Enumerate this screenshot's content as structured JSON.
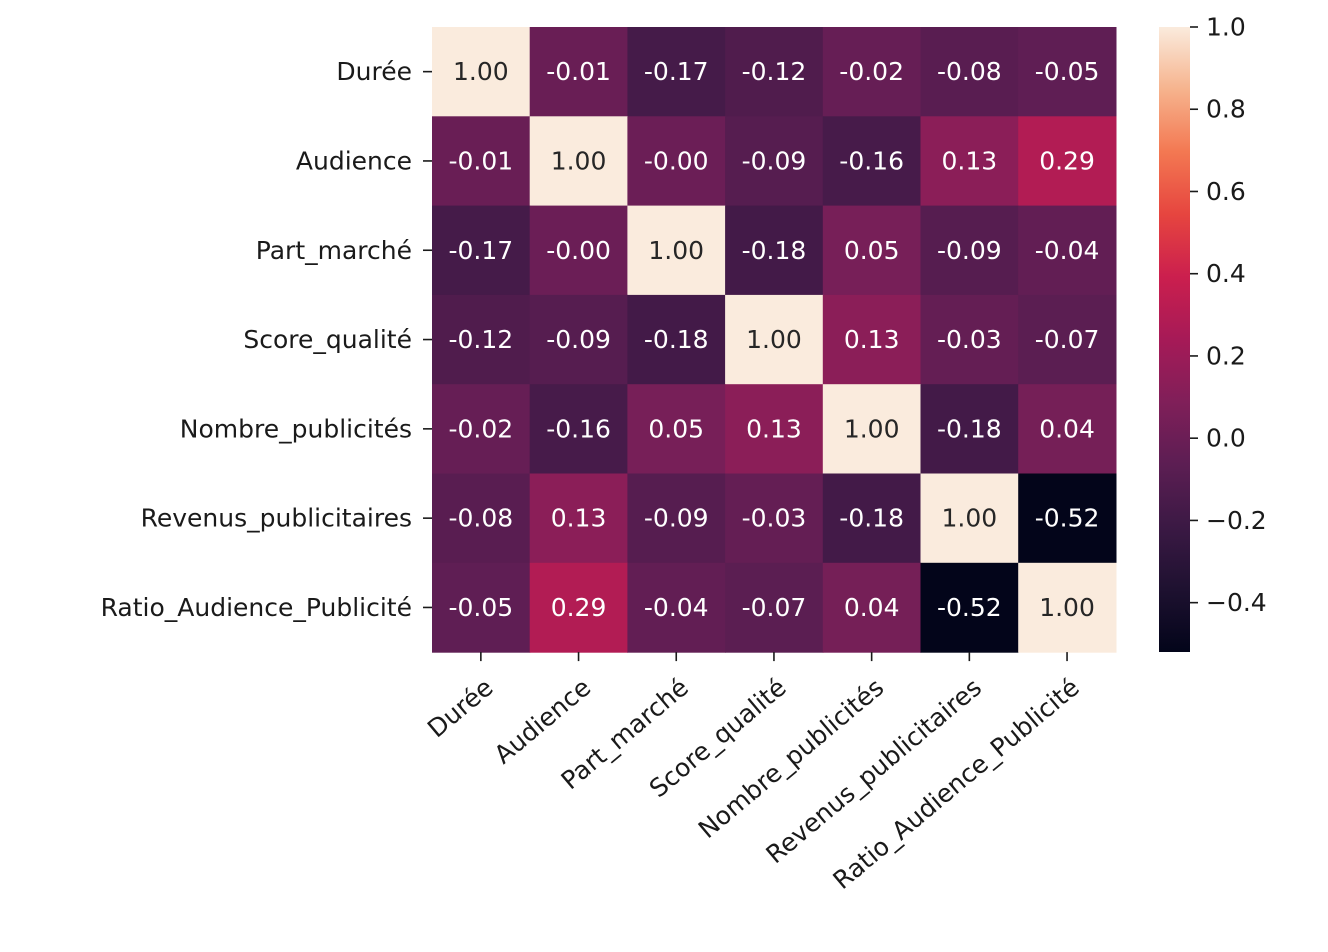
{
  "chart_data": {
    "type": "heatmap",
    "title": "",
    "xlabel": "",
    "ylabel": "",
    "variables": [
      "Durée",
      "Audience",
      "Part_marché",
      "Score_qualité",
      "Nombre_publicités",
      "Revenus_publicitaires",
      "Ratio_Audience_Publicité"
    ],
    "values": [
      [
        1.0,
        -0.01,
        -0.17,
        -0.12,
        -0.02,
        -0.08,
        -0.05
      ],
      [
        -0.01,
        1.0,
        -0.0,
        -0.09,
        -0.16,
        0.13,
        0.29
      ],
      [
        -0.17,
        -0.0,
        1.0,
        -0.18,
        0.05,
        -0.09,
        -0.04
      ],
      [
        -0.12,
        -0.09,
        -0.18,
        1.0,
        0.13,
        -0.03,
        -0.07
      ],
      [
        -0.02,
        -0.16,
        0.05,
        0.13,
        1.0,
        -0.18,
        0.04
      ],
      [
        -0.08,
        0.13,
        -0.09,
        -0.03,
        -0.18,
        1.0,
        -0.52
      ],
      [
        -0.05,
        0.29,
        -0.04,
        -0.07,
        0.04,
        -0.52,
        1.0
      ]
    ],
    "value_format": "2 decimals",
    "color_scale": {
      "name": "rocket",
      "min": -0.52,
      "max": 1.0,
      "low_color": "#03051a",
      "high_color": "#faebdd"
    },
    "colorbar": {
      "ticks": [
        1.0,
        0.8,
        0.6,
        0.4,
        0.2,
        0.0,
        -0.2,
        -0.4
      ],
      "tick_labels": [
        "1.0",
        "0.8",
        "0.6",
        "0.4",
        "0.2",
        "0.0",
        "−0.2",
        "−0.4"
      ]
    },
    "grid": false,
    "legend": "colorbar-right"
  }
}
